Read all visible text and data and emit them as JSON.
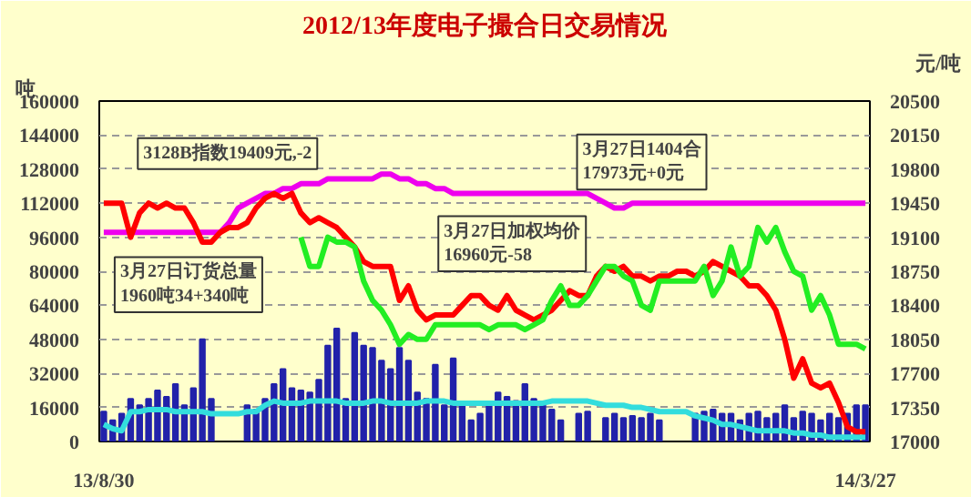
{
  "chart_data": {
    "type": "bar",
    "title": "2012/13年度电子撮合日交易情况",
    "ylabel": "吨",
    "y2label": "元/吨",
    "categories": [
      "13/8/30",
      null,
      null,
      null,
      null,
      null,
      null,
      null,
      null,
      null,
      null,
      null,
      null,
      null,
      null,
      null,
      null,
      null,
      null,
      null,
      null,
      null,
      null,
      null,
      null,
      null,
      null,
      null,
      null,
      null,
      null,
      null,
      null,
      null,
      null,
      null,
      null,
      null,
      null,
      null,
      null,
      null,
      null,
      null,
      null,
      null,
      null,
      null,
      null,
      null,
      null,
      null,
      null,
      null,
      null,
      null,
      null,
      null,
      null,
      null,
      null,
      null,
      null,
      null,
      null,
      null,
      null,
      null,
      null,
      null,
      null,
      null,
      null,
      null,
      null,
      null,
      null,
      null,
      null,
      null,
      null,
      null,
      null,
      null,
      null,
      "14/3/27"
    ],
    "series": [
      {
        "color": "#2222aa",
        "values": [
          14000,
          10000,
          13000,
          20000,
          17000,
          20000,
          24000,
          21000,
          27000,
          17000,
          25000,
          48000,
          20000,
          null,
          null,
          null,
          17000,
          15000,
          20000,
          27000,
          34000,
          25000,
          24000,
          23000,
          29000,
          45000,
          53000,
          20000,
          51000,
          45000,
          44000,
          38000,
          34000,
          44000,
          38000,
          23000,
          20000,
          36000,
          17000,
          39000,
          17000,
          10000,
          13000,
          17000,
          23000,
          21000,
          19000,
          27000,
          20000,
          17000,
          15000,
          10000,
          null,
          13000,
          14000,
          null,
          11000,
          13000,
          11000,
          12000,
          11000,
          13000,
          10000,
          null,
          null,
          null,
          13000,
          14000,
          15000,
          13000,
          13000,
          10000,
          13000,
          14000,
          11000,
          13000,
          17000,
          11000,
          14000,
          13000,
          10000,
          13000,
          11000,
          13000,
          17000,
          17000
        ]
      },
      {
        "type": "line",
        "color": "#33dddd",
        "values": [
          8000,
          6000,
          5000,
          14000,
          14000,
          15000,
          15000,
          15000,
          14000,
          14000,
          14000,
          14000,
          13000,
          13000,
          13000,
          13000,
          14000,
          14000,
          17000,
          19000,
          18000,
          18000,
          18000,
          19000,
          19000,
          19000,
          19000,
          18000,
          18000,
          18000,
          19000,
          19000,
          18000,
          18000,
          18000,
          18000,
          19000,
          19000,
          19000,
          18000,
          18000,
          18000,
          18000,
          18000,
          18000,
          18000,
          18000,
          18000,
          18000,
          18000,
          19000,
          19000,
          19000,
          19000,
          19000,
          18000,
          17000,
          17000,
          17000,
          16000,
          16000,
          15000,
          14000,
          14000,
          14000,
          14000,
          12000,
          11000,
          10000,
          8000,
          8000,
          7000,
          6000,
          5000,
          5000,
          5000,
          5000,
          4000,
          4000,
          3000,
          3000,
          2000,
          2000,
          2000,
          2000,
          2000
        ]
      },
      {
        "type": "line",
        "axis": "y2",
        "color": "#ee00ee",
        "values": [
          19150,
          19150,
          19150,
          19150,
          19150,
          19150,
          19150,
          19150,
          19150,
          19150,
          19150,
          19150,
          19150,
          19150,
          19250,
          19400,
          19450,
          19500,
          19550,
          19550,
          19600,
          19600,
          19650,
          19650,
          19650,
          19700,
          19700,
          19700,
          19700,
          19700,
          19700,
          19750,
          19750,
          19700,
          19700,
          19650,
          19650,
          19600,
          19600,
          19550,
          19550,
          19550,
          19550,
          19550,
          19550,
          19550,
          19550,
          19550,
          19550,
          19550,
          19550,
          19550,
          19550,
          19550,
          19550,
          19500,
          19450,
          19400,
          19400,
          19450,
          19450,
          19450,
          19450,
          19450,
          19450,
          19450,
          19450,
          19450,
          19450,
          19450,
          19450,
          19450,
          19450,
          19450,
          19450,
          19450,
          19450,
          19450,
          19450,
          19450,
          19450,
          19450,
          19450,
          19450,
          19450,
          19450
        ]
      },
      {
        "type": "line",
        "axis": "y2",
        "color": "#ff0000",
        "values": [
          19450,
          19450,
          19450,
          19100,
          19350,
          19450,
          19400,
          19450,
          19400,
          19400,
          19250,
          19050,
          19050,
          19150,
          19200,
          19200,
          19250,
          19400,
          19500,
          19550,
          19500,
          19550,
          19350,
          19250,
          19300,
          19250,
          19200,
          19100,
          19000,
          18850,
          18800,
          18800,
          18800,
          18450,
          18600,
          18350,
          18250,
          18300,
          18300,
          18300,
          18400,
          18500,
          18500,
          18400,
          18350,
          18500,
          18350,
          18300,
          18250,
          18300,
          18350,
          18450,
          18550,
          18500,
          18500,
          18700,
          18800,
          18750,
          18800,
          18700,
          18700,
          18650,
          18700,
          18700,
          18750,
          18750,
          18700,
          18750,
          18850,
          18800,
          18750,
          18700,
          18600,
          18600,
          18500,
          18350,
          18050,
          17650,
          17850,
          17600,
          17550,
          17600,
          17400,
          17150,
          17100,
          17100
        ]
      },
      {
        "type": "line",
        "axis": "y2",
        "color": "#22ee22",
        "values": [
          null,
          null,
          null,
          null,
          null,
          null,
          null,
          null,
          null,
          null,
          null,
          null,
          null,
          null,
          null,
          null,
          null,
          null,
          null,
          null,
          null,
          null,
          19100,
          18800,
          18800,
          19100,
          19050,
          19050,
          19000,
          18650,
          18450,
          18350,
          18200,
          18000,
          18100,
          18050,
          18050,
          18200,
          18200,
          18200,
          18200,
          18200,
          18200,
          18150,
          18200,
          18200,
          18200,
          18150,
          18200,
          18250,
          18450,
          18600,
          18400,
          18400,
          18500,
          18650,
          18800,
          18800,
          18700,
          18650,
          18400,
          18350,
          18650,
          18650,
          18650,
          18650,
          18650,
          18800,
          18500,
          18650,
          19000,
          18700,
          18800,
          19200,
          19050,
          19200,
          18950,
          18750,
          18700,
          18350,
          18500,
          18300,
          18000,
          18000,
          18000,
          17950
        ]
      }
    ],
    "ylim": [
      0,
      160000
    ],
    "yticks": [
      0,
      16000,
      32000,
      48000,
      64000,
      80000,
      96000,
      112000,
      128000,
      144000,
      160000
    ],
    "y2lim": [
      17000,
      20500
    ],
    "y2ticks": [
      17000,
      17350,
      17700,
      18050,
      18400,
      18750,
      19100,
      19450,
      19800,
      20150,
      20500
    ],
    "grid": "y",
    "annotations": [
      "3128B指数19409元,-2",
      "3月27日1404合\n17973元+0元",
      "3月27日加权均价\n16960元-58",
      "3月27日订货总量\n1960吨34+340吨"
    ]
  }
}
